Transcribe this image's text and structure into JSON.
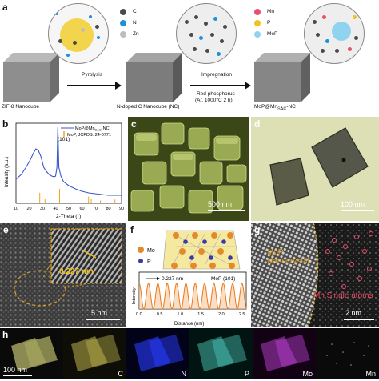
{
  "panel_a": {
    "label": "a",
    "legend": [
      {
        "symbol": "C",
        "color": "#4a4a4a"
      },
      {
        "symbol": "N",
        "color": "#1e90d8"
      },
      {
        "symbol": "Zn",
        "color": "#bdbdbd"
      },
      {
        "symbol": "Mn",
        "color": "#e8506a"
      },
      {
        "symbol": "P",
        "color": "#f2c21b"
      },
      {
        "symbol": "MoP",
        "color": "#8fd3f0"
      }
    ],
    "step1": "Pyrolysis",
    "step2_line1": "Impregnation",
    "step2_line2": "Red phosphorus",
    "step2_line3": "(Ar, 1000°C 2 h)",
    "cube1": "ZIF-8 Nanocube",
    "cube2": "N-doped C Nanocube (NC)",
    "cube3": "MoP@Mn",
    "cube3_sub": "SAC",
    "cube3_tail": "-NC"
  },
  "panel_b": {
    "label": "b",
    "legend1_pre": "MoP@Mn",
    "legend1_sub": "SAC",
    "legend1_tail": "-NC",
    "legend2": "MoP, JCPDS: 24-0771",
    "peak_label": "(101)",
    "ylabel": "Intensity (a.u.)",
    "xlabel": "2-Theta (°)",
    "xticks": [
      "10",
      "20",
      "30",
      "40",
      "50",
      "60",
      "70",
      "80",
      "90"
    ],
    "line_color": "#3b56c8",
    "ref_color": "#f2a31b"
  },
  "chart_data": {
    "type": "line",
    "xlabel": "2-Theta (°)",
    "ylabel": "Intensity (a.u.)",
    "xlim": [
      10,
      90
    ],
    "series": [
      {
        "name": "MoP@MnSAC-NC",
        "x": [
          10,
          14,
          18,
          21,
          23,
          25,
          27,
          29,
          31,
          33,
          35,
          37,
          39,
          40,
          41,
          41.7,
          42.5,
          44,
          46,
          50,
          55,
          60,
          65,
          70,
          75,
          80,
          85,
          90
        ],
        "y": [
          0.3,
          0.36,
          0.46,
          0.55,
          0.62,
          0.68,
          0.66,
          0.58,
          0.45,
          0.4,
          0.36,
          0.34,
          0.33,
          0.34,
          0.45,
          0.95,
          0.45,
          0.34,
          0.27,
          0.22,
          0.18,
          0.15,
          0.13,
          0.12,
          0.11,
          0.1,
          0.1,
          0.1
        ]
      },
      {
        "name": "MoP, JCPDS: 24-0771",
        "x": [
          28,
          32,
          43,
          57,
          65,
          67,
          74,
          85
        ],
        "y": [
          0.22,
          0.1,
          0.3,
          0.12,
          0.14,
          0.1,
          0.06,
          0.08
        ]
      }
    ]
  },
  "panel_c": {
    "label": "c",
    "scale": "500 nm"
  },
  "panel_d": {
    "label": "d",
    "scale": "100 nm"
  },
  "panel_e": {
    "label": "e",
    "lattice": "0.227 nm",
    "scale": "5 nm"
  },
  "panel_f": {
    "label": "f",
    "legend": [
      {
        "symbol": "Mo",
        "color": "#e48a2a"
      },
      {
        "symbol": "P",
        "color": "#3a3aa8"
      }
    ],
    "spacing": "0.227 nm",
    "plane": "MoP (101)",
    "ylabel": "Intensity",
    "xlabel": "Distance (nm)",
    "xticks": [
      "0.0",
      "0.5",
      "1.0",
      "1.5",
      "2.0",
      "2.5"
    ],
    "line_color": "#e87a1e"
  },
  "panel_g": {
    "label": "g",
    "text1_line1": "MoP",
    "text1_line2": "Nanocrystal",
    "text2": "Mn Single atoms",
    "scale": "2 nm"
  },
  "panel_h": {
    "label": "h",
    "scale": "100 nm",
    "maps": [
      {
        "element": "",
        "color": "#e8e07a"
      },
      {
        "element": "C",
        "color": "#d8d060"
      },
      {
        "element": "N",
        "color": "#2a3cff"
      },
      {
        "element": "P",
        "color": "#4fd6c8"
      },
      {
        "element": "Mo",
        "color": "#c040d8"
      },
      {
        "element": "Mn",
        "color": "#d0d0d0"
      }
    ]
  }
}
